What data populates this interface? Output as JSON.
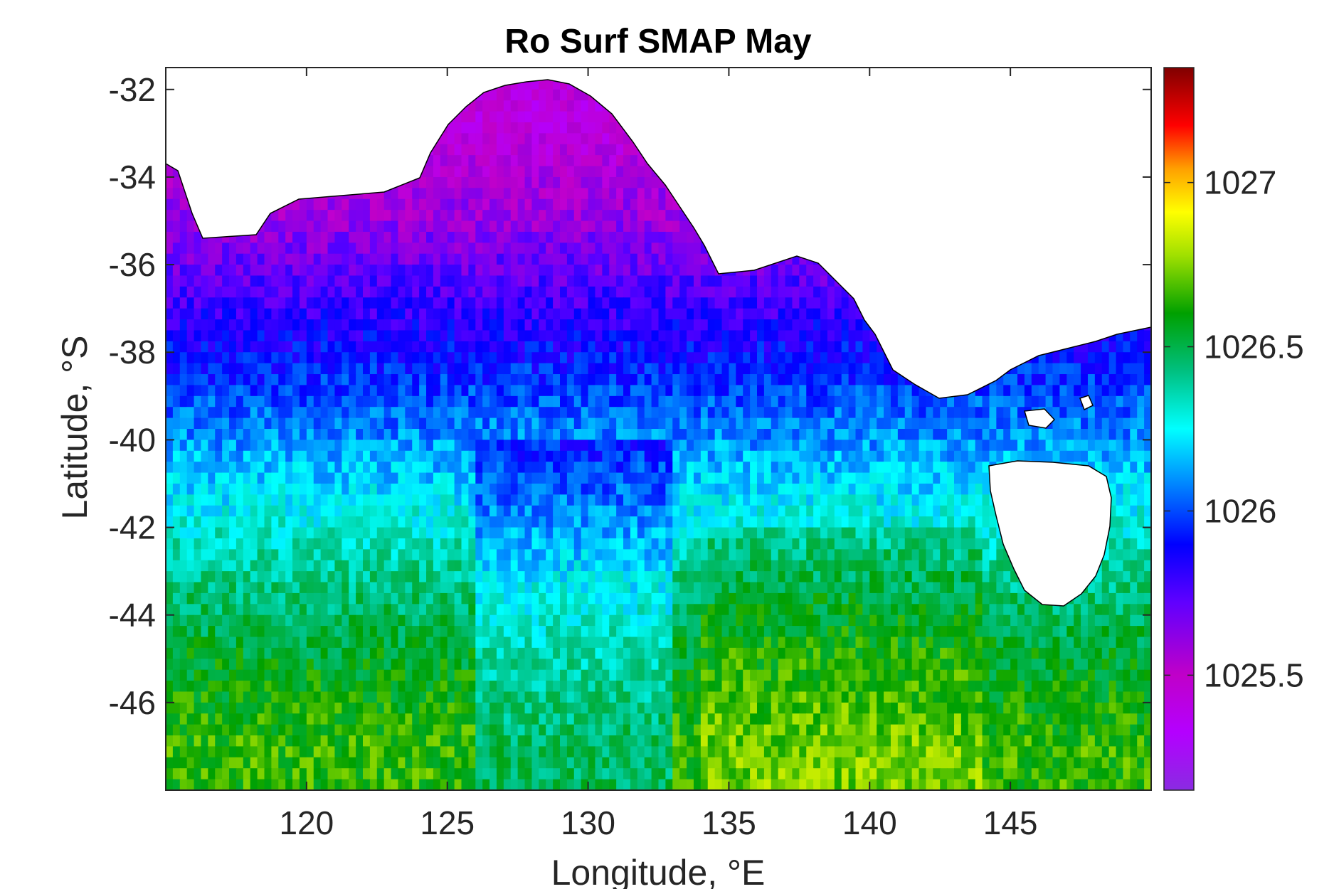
{
  "chart_data": {
    "type": "heatmap",
    "title": "Ro Surf SMAP May",
    "xlabel": "Longitude, °E",
    "ylabel": "Latitude, °S",
    "xlim": [
      115,
      150
    ],
    "ylim": [
      -48,
      -31.5
    ],
    "x_ticks": [
      120,
      125,
      130,
      135,
      140,
      145
    ],
    "x_tick_labels": [
      "120",
      "125",
      "130",
      "135",
      "140",
      "145"
    ],
    "y_ticks": [
      -32,
      -34,
      -36,
      -38,
      -40,
      -42,
      -44,
      -46
    ],
    "y_tick_labels": [
      "-32",
      "-34",
      "-36",
      "-38",
      "-40",
      "-42",
      "-44",
      "-46"
    ],
    "grid": false,
    "grid_resolution_deg": 0.25,
    "colorbar": {
      "location": "right",
      "colormap": "jet-like (violet to dark red)",
      "clim": [
        1025.15,
        1027.35
      ],
      "ticks": [
        1025.5,
        1026,
        1026.5,
        1027
      ],
      "tick_labels": [
        "1025.5",
        "1026",
        "1026.5",
        "1027"
      ]
    },
    "land_color": "#ffffff",
    "coastline_color": "#000000",
    "approx_field_by_latitude": [
      {
        "lat": -33.0,
        "value": 1025.45
      },
      {
        "lat": -35.0,
        "value": 1025.6
      },
      {
        "lat": -37.0,
        "value": 1025.8
      },
      {
        "lat": -39.0,
        "value": 1026.0
      },
      {
        "lat": -41.0,
        "value": 1026.2
      },
      {
        "lat": -43.0,
        "value": 1026.4
      },
      {
        "lat": -45.0,
        "value": 1026.55
      },
      {
        "lat": -47.0,
        "value": 1026.65
      }
    ]
  }
}
